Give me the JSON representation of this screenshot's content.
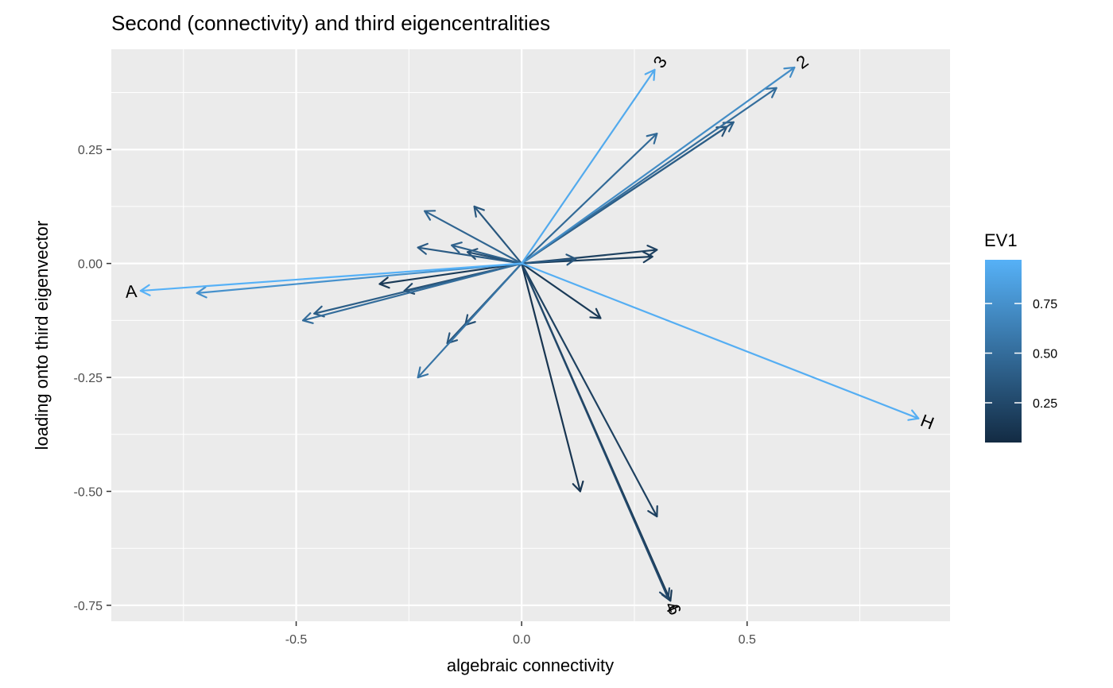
{
  "chart_data": {
    "type": "biplot",
    "title": "Second (connectivity) and third eigencentralities",
    "xlabel": "algebraic connectivity",
    "ylabel": "loading onto third eigenvector",
    "xlim": [
      -0.91,
      0.95
    ],
    "ylim": [
      -0.785,
      0.47
    ],
    "x_ticks": [
      -0.5,
      0.0,
      0.5
    ],
    "x_tick_labels": [
      "-0.5",
      "0.0",
      "0.5"
    ],
    "y_ticks": [
      0.25,
      0.0,
      -0.25,
      -0.5,
      -0.75
    ],
    "y_tick_labels": [
      "0.25",
      "0.00",
      "-0.25",
      "-0.50",
      "-0.75"
    ],
    "grid": true,
    "legend": {
      "title": "EV1",
      "position": "right",
      "range": [
        0.05,
        0.97
      ],
      "ticks": [
        0.75,
        0.5,
        0.25
      ],
      "tick_labels": [
        "0.75",
        "0.50",
        "0.25"
      ],
      "color_low": "#132B43",
      "color_high": "#56B1F7"
    },
    "arrows": [
      {
        "x": -0.845,
        "y": -0.06,
        "ev1": 0.97,
        "label": "A"
      },
      {
        "x": 0.88,
        "y": -0.34,
        "ev1": 0.95,
        "label": "H"
      },
      {
        "x": 0.295,
        "y": 0.425,
        "ev1": 0.92,
        "label": "3"
      },
      {
        "x": 0.605,
        "y": 0.43,
        "ev1": 0.72,
        "label": "2"
      },
      {
        "x": -0.72,
        "y": -0.065,
        "ev1": 0.75,
        "label": ""
      },
      {
        "x": 0.565,
        "y": 0.385,
        "ev1": 0.5,
        "label": ""
      },
      {
        "x": 0.3,
        "y": 0.285,
        "ev1": 0.48,
        "label": ""
      },
      {
        "x": 0.47,
        "y": 0.31,
        "ev1": 0.4,
        "label": ""
      },
      {
        "x": 0.455,
        "y": 0.3,
        "ev1": 0.3,
        "label": ""
      },
      {
        "x": -0.215,
        "y": 0.115,
        "ev1": 0.45,
        "label": ""
      },
      {
        "x": -0.105,
        "y": 0.125,
        "ev1": 0.35,
        "label": ""
      },
      {
        "x": -0.23,
        "y": 0.035,
        "ev1": 0.38,
        "label": ""
      },
      {
        "x": -0.155,
        "y": 0.04,
        "ev1": 0.42,
        "label": ""
      },
      {
        "x": -0.12,
        "y": 0.025,
        "ev1": 0.3,
        "label": ""
      },
      {
        "x": 0.3,
        "y": 0.03,
        "ev1": 0.2,
        "label": ""
      },
      {
        "x": 0.29,
        "y": 0.015,
        "ev1": 0.18,
        "label": ""
      },
      {
        "x": 0.12,
        "y": 0.01,
        "ev1": 0.35,
        "label": ""
      },
      {
        "x": -0.315,
        "y": -0.045,
        "ev1": 0.15,
        "label": ""
      },
      {
        "x": -0.26,
        "y": -0.06,
        "ev1": 0.25,
        "label": ""
      },
      {
        "x": -0.46,
        "y": -0.11,
        "ev1": 0.4,
        "label": ""
      },
      {
        "x": -0.485,
        "y": -0.125,
        "ev1": 0.5,
        "label": ""
      },
      {
        "x": 0.175,
        "y": -0.12,
        "ev1": 0.15,
        "label": ""
      },
      {
        "x": -0.125,
        "y": -0.135,
        "ev1": 0.3,
        "label": ""
      },
      {
        "x": -0.165,
        "y": -0.175,
        "ev1": 0.35,
        "label": ""
      },
      {
        "x": -0.23,
        "y": -0.25,
        "ev1": 0.55,
        "label": ""
      },
      {
        "x": 0.13,
        "y": -0.5,
        "ev1": 0.12,
        "label": ""
      },
      {
        "x": 0.3,
        "y": -0.555,
        "ev1": 0.2,
        "label": ""
      },
      {
        "x": 0.325,
        "y": -0.735,
        "ev1": 0.25,
        "label": "4"
      },
      {
        "x": 0.33,
        "y": -0.74,
        "ev1": 0.15,
        "label": "6"
      }
    ]
  }
}
